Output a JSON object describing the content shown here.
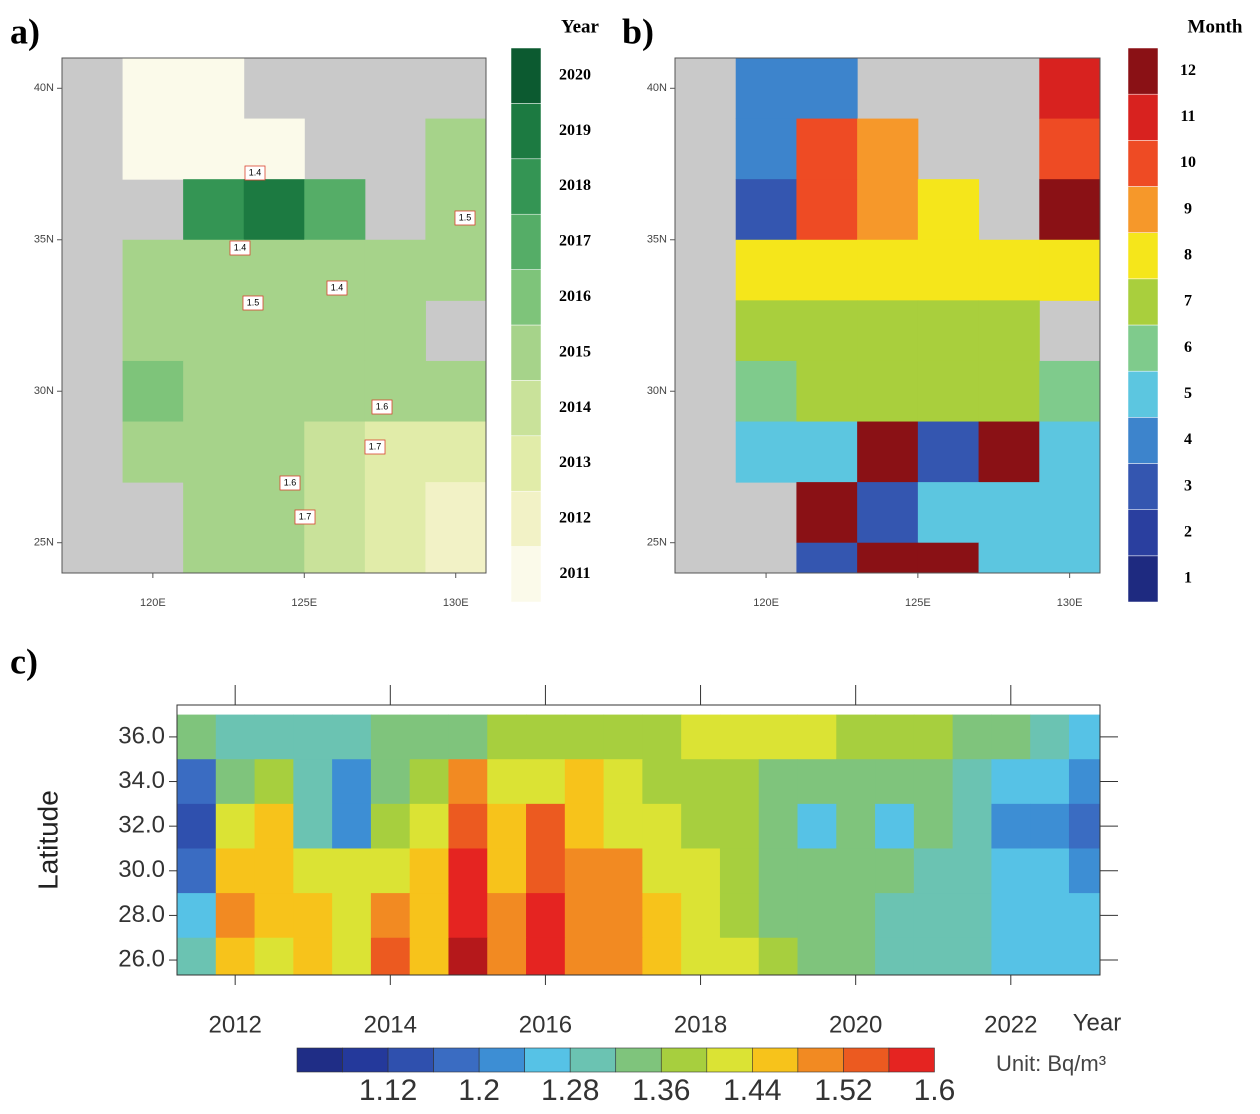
{
  "chart_data": [
    {
      "type": "map",
      "panel_label": "a)",
      "xlim": [
        117,
        131
      ],
      "ylim": [
        24,
        41
      ],
      "xticks": [
        {
          "value": 120,
          "label": "120E"
        },
        {
          "value": 125,
          "label": "125E"
        },
        {
          "value": 130,
          "label": "130E"
        }
      ],
      "yticks": [
        {
          "value": 25,
          "label": "25N"
        },
        {
          "value": 30,
          "label": "30N"
        },
        {
          "value": 35,
          "label": "35N"
        },
        {
          "value": 40,
          "label": "40N"
        }
      ],
      "grid_lon": [
        117,
        119,
        121,
        123,
        125,
        127,
        129,
        131
      ],
      "grid_lat": [
        41,
        39,
        37,
        35,
        33,
        31,
        29,
        27,
        25,
        24
      ],
      "z": [
        [
          null,
          2011,
          2011,
          null,
          null,
          null,
          null
        ],
        [
          null,
          2011,
          2011,
          2011,
          null,
          null,
          2015
        ],
        [
          null,
          null,
          2018,
          2019,
          2017,
          null,
          2015
        ],
        [
          null,
          2015,
          2015,
          2015,
          2015,
          2015,
          2015
        ],
        [
          null,
          2015,
          2015,
          2015,
          2015,
          2015,
          null
        ],
        [
          null,
          2016,
          2015,
          2015,
          2015,
          2015,
          2015
        ],
        [
          null,
          2015,
          2015,
          2015,
          2014,
          2013,
          2013
        ],
        [
          null,
          null,
          2015,
          2015,
          2014,
          2013,
          2012
        ],
        [
          null,
          null,
          2015,
          2015,
          2014,
          2013,
          2012
        ]
      ],
      "contour_labels": [
        1.4,
        1.4,
        1.5,
        1.5,
        1.4,
        1.6,
        1.7,
        1.6,
        1.7
      ],
      "contour_color": "#d9432f",
      "land_color": "#c9c9c9",
      "colorbar": {
        "title": "Year",
        "levels": [
          2011,
          2012,
          2013,
          2014,
          2015,
          2016,
          2017,
          2018,
          2019,
          2020
        ],
        "colors": [
          "#fbfaea",
          "#f2f2c6",
          "#e1eca9",
          "#c9e29a",
          "#a6d38a",
          "#7ec47a",
          "#55ad67",
          "#349554",
          "#1c7a41",
          "#0c5a30"
        ]
      }
    },
    {
      "type": "map",
      "panel_label": "b)",
      "xlim": [
        117,
        131
      ],
      "ylim": [
        24,
        41
      ],
      "xticks": [
        {
          "value": 120,
          "label": "120E"
        },
        {
          "value": 125,
          "label": "125E"
        },
        {
          "value": 130,
          "label": "130E"
        }
      ],
      "yticks": [
        {
          "value": 25,
          "label": "25N"
        },
        {
          "value": 30,
          "label": "30N"
        },
        {
          "value": 35,
          "label": "35N"
        },
        {
          "value": 40,
          "label": "40N"
        }
      ],
      "grid_lon": [
        117,
        119,
        121,
        123,
        125,
        127,
        129,
        131
      ],
      "grid_lat": [
        41,
        39,
        37,
        35,
        33,
        31,
        29,
        27,
        25,
        24
      ],
      "z": [
        [
          null,
          4,
          4,
          null,
          null,
          null,
          11
        ],
        [
          null,
          4,
          10,
          9,
          null,
          null,
          10
        ],
        [
          null,
          3,
          10,
          9,
          8,
          null,
          12
        ],
        [
          null,
          8,
          8,
          8,
          8,
          8,
          8
        ],
        [
          null,
          7,
          7,
          7,
          7,
          7,
          null
        ],
        [
          null,
          6,
          7,
          7,
          7,
          7,
          6
        ],
        [
          null,
          5,
          5,
          12,
          3,
          12,
          5
        ],
        [
          null,
          null,
          12,
          3,
          5,
          5,
          5
        ],
        [
          null,
          null,
          3,
          12,
          12,
          5,
          5
        ]
      ],
      "land_color": "#c9c9c9",
      "colorbar": {
        "title": "Month",
        "levels": [
          1,
          2,
          3,
          4,
          5,
          6,
          7,
          8,
          9,
          10,
          11,
          12
        ],
        "colors": [
          "#1e2a80",
          "#2a3f9f",
          "#3456b0",
          "#3d84cc",
          "#5cc6e0",
          "#7fcb8c",
          "#a9cf3d",
          "#f5e61b",
          "#f6982a",
          "#ee4b24",
          "#d8221f",
          "#8a1115"
        ]
      }
    },
    {
      "type": "contour",
      "panel_label": "c)",
      "xlabel": "Year",
      "ylabel": "Latitude",
      "xlim": [
        2011.25,
        2023.15
      ],
      "ylim": [
        25.33,
        37.43
      ],
      "xticks": [
        2012,
        2014,
        2016,
        2018,
        2020,
        2022
      ],
      "yticks": [
        {
          "value": 26,
          "label": "26.0"
        },
        {
          "value": 28,
          "label": "28.0"
        },
        {
          "value": 30,
          "label": "30.0"
        },
        {
          "value": 32,
          "label": "32.0"
        },
        {
          "value": 34,
          "label": "34.0"
        },
        {
          "value": 36,
          "label": "36.0"
        }
      ],
      "x": [
        2011.5,
        2012,
        2012.5,
        2013,
        2013.5,
        2014,
        2014.5,
        2015,
        2015.5,
        2016,
        2016.5,
        2017,
        2017.5,
        2018,
        2018.5,
        2019,
        2019.5,
        2020,
        2020.5,
        2021,
        2021.5,
        2022,
        2022.5,
        2023
      ],
      "y": [
        36,
        34,
        32,
        30,
        28,
        26
      ],
      "z": [
        [
          1.34,
          1.3,
          1.3,
          1.3,
          1.3,
          1.32,
          1.34,
          1.34,
          1.36,
          1.36,
          1.36,
          1.38,
          1.38,
          1.4,
          1.4,
          1.4,
          1.4,
          1.38,
          1.38,
          1.36,
          1.34,
          1.32,
          1.3,
          1.26
        ],
        [
          1.18,
          1.34,
          1.38,
          1.3,
          1.22,
          1.34,
          1.36,
          1.5,
          1.4,
          1.42,
          1.44,
          1.4,
          1.38,
          1.38,
          1.36,
          1.34,
          1.32,
          1.34,
          1.34,
          1.34,
          1.3,
          1.26,
          1.24,
          1.2
        ],
        [
          1.12,
          1.4,
          1.44,
          1.28,
          1.2,
          1.38,
          1.42,
          1.54,
          1.46,
          1.52,
          1.46,
          1.42,
          1.4,
          1.38,
          1.36,
          1.32,
          1.26,
          1.34,
          1.26,
          1.32,
          1.28,
          1.22,
          1.2,
          1.18
        ],
        [
          1.18,
          1.46,
          1.44,
          1.42,
          1.4,
          1.42,
          1.44,
          1.56,
          1.46,
          1.54,
          1.48,
          1.48,
          1.42,
          1.4,
          1.36,
          1.34,
          1.32,
          1.34,
          1.32,
          1.3,
          1.28,
          1.26,
          1.24,
          1.22
        ],
        [
          1.24,
          1.48,
          1.44,
          1.44,
          1.42,
          1.48,
          1.44,
          1.58,
          1.48,
          1.56,
          1.5,
          1.5,
          1.44,
          1.42,
          1.38,
          1.34,
          1.32,
          1.32,
          1.3,
          1.28,
          1.28,
          1.26,
          1.24,
          1.24
        ],
        [
          1.3,
          1.46,
          1.42,
          1.44,
          1.4,
          1.52,
          1.44,
          1.62,
          1.5,
          1.58,
          1.48,
          1.5,
          1.46,
          1.42,
          1.4,
          1.36,
          1.34,
          1.32,
          1.3,
          1.28,
          1.28,
          1.26,
          1.26,
          1.24
        ]
      ],
      "colorbar": {
        "unit": "Unit:  Bq/m³",
        "lim": [
          1.04,
          1.64
        ],
        "levels": [
          1.08,
          1.12,
          1.16,
          1.2,
          1.24,
          1.28,
          1.32,
          1.36,
          1.4,
          1.44,
          1.48,
          1.52,
          1.56,
          1.6
        ],
        "ticks": [
          1.12,
          1.2,
          1.28,
          1.36,
          1.44,
          1.52,
          1.6
        ],
        "colors": [
          "#1f2d86",
          "#24399b",
          "#2f50ae",
          "#3a6cc2",
          "#3d8ed4",
          "#56c2e6",
          "#6bc3b2",
          "#7fc47c",
          "#a7cf3e",
          "#dbe334",
          "#f7c31b",
          "#f28a22",
          "#ec5a20",
          "#e52421",
          "#b5181b",
          "#7d0f12"
        ]
      }
    }
  ]
}
